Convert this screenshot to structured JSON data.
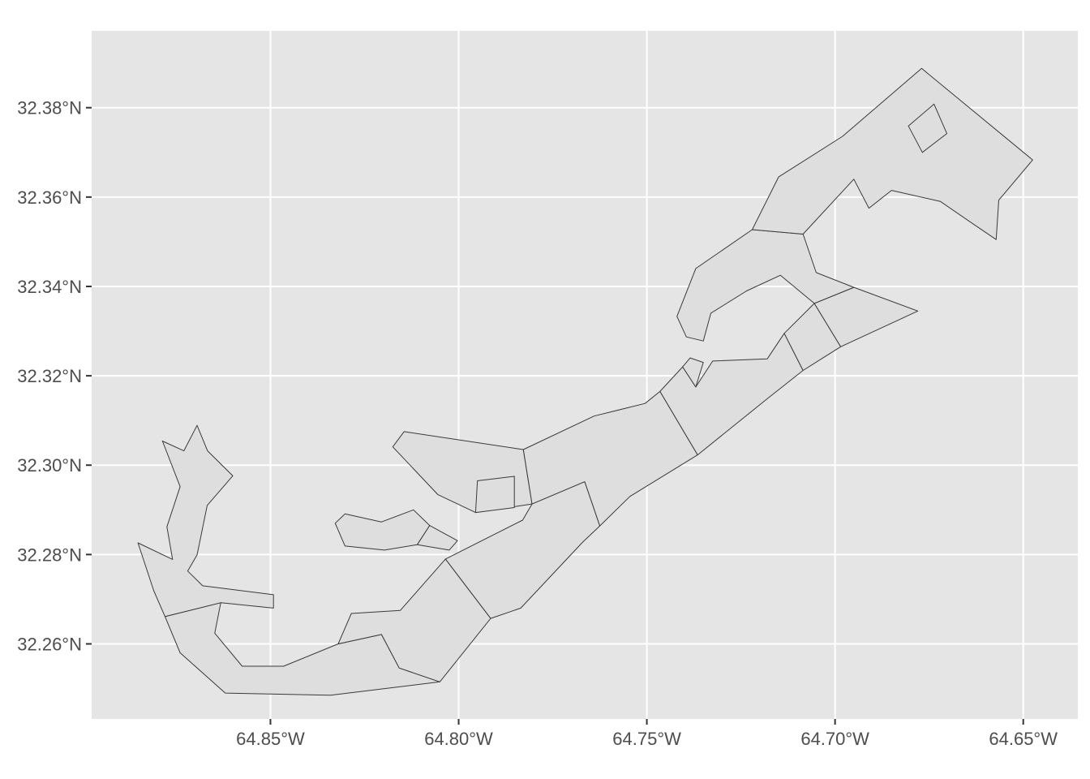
{
  "chart_data": {
    "type": "map",
    "title": "",
    "xlabel": "",
    "ylabel": "",
    "grid": true,
    "xlim": [
      -64.8975,
      -64.6355
    ],
    "ylim": [
      32.2432,
      32.3972
    ],
    "x_ticks": [
      {
        "value": -64.85,
        "label": "64.85°W"
      },
      {
        "value": -64.8,
        "label": "64.80°W"
      },
      {
        "value": -64.75,
        "label": "64.75°W"
      },
      {
        "value": -64.7,
        "label": "64.70°W"
      },
      {
        "value": -64.65,
        "label": "64.65°W"
      }
    ],
    "y_ticks": [
      {
        "value": 32.26,
        "label": "32.26°N"
      },
      {
        "value": 32.28,
        "label": "32.28°N"
      },
      {
        "value": 32.3,
        "label": "32.30°N"
      },
      {
        "value": 32.32,
        "label": "32.32°N"
      },
      {
        "value": 32.34,
        "label": "32.34°N"
      },
      {
        "value": 32.36,
        "label": "32.36°N"
      },
      {
        "value": 32.38,
        "label": "32.38°N"
      }
    ],
    "regions": [
      [
        [
          -64.8787,
          32.3054
        ],
        [
          -64.873,
          32.3032
        ],
        [
          -64.8695,
          32.3089
        ],
        [
          -64.8667,
          32.3032
        ],
        [
          -64.86,
          32.2976
        ],
        [
          -64.8668,
          32.291
        ],
        [
          -64.8695,
          32.2799
        ],
        [
          -64.872,
          32.2763
        ],
        [
          -64.868,
          32.273
        ],
        [
          -64.8492,
          32.271
        ],
        [
          -64.8492,
          32.268
        ],
        [
          -64.8632,
          32.2692
        ],
        [
          -64.878,
          32.2661
        ],
        [
          -64.881,
          32.2719
        ],
        [
          -64.8852,
          32.2826
        ],
        [
          -64.876,
          32.2789
        ],
        [
          -64.8775,
          32.2862
        ],
        [
          -64.874,
          32.2952
        ]
      ],
      [
        [
          -64.878,
          32.2661
        ],
        [
          -64.8632,
          32.2692
        ],
        [
          -64.8648,
          32.2624
        ],
        [
          -64.8575,
          32.255
        ],
        [
          -64.8465,
          32.255
        ],
        [
          -64.832,
          32.26
        ],
        [
          -64.8205,
          32.2621
        ],
        [
          -64.8158,
          32.2546
        ],
        [
          -64.805,
          32.2515
        ],
        [
          -64.834,
          32.2485
        ],
        [
          -64.862,
          32.249
        ],
        [
          -64.874,
          32.258
        ]
      ],
      [
        [
          -64.832,
          32.26
        ],
        [
          -64.8285,
          32.2668
        ],
        [
          -64.8155,
          32.2675
        ],
        [
          -64.8035,
          32.279
        ],
        [
          -64.7915,
          32.2657
        ],
        [
          -64.805,
          32.2515
        ],
        [
          -64.8158,
          32.2546
        ],
        [
          -64.8205,
          32.2621
        ]
      ],
      [
        [
          -64.8035,
          32.279
        ],
        [
          -64.783,
          32.2877
        ],
        [
          -64.7805,
          32.2913
        ],
        [
          -64.7665,
          32.2963
        ],
        [
          -64.7625,
          32.2864
        ],
        [
          -64.767,
          32.2828
        ],
        [
          -64.7835,
          32.268
        ],
        [
          -64.7915,
          32.2657
        ]
      ],
      [
        [
          -64.8328,
          32.287
        ],
        [
          -64.8302,
          32.2891
        ],
        [
          -64.8205,
          32.2873
        ],
        [
          -64.812,
          32.29
        ],
        [
          -64.8077,
          32.2865
        ],
        [
          -64.811,
          32.2822
        ],
        [
          -64.8197,
          32.281
        ],
        [
          -64.8302,
          32.2819
        ]
      ],
      [
        [
          -64.8077,
          32.2865
        ],
        [
          -64.8003,
          32.2831
        ],
        [
          -64.8025,
          32.281
        ],
        [
          -64.811,
          32.2822
        ]
      ],
      [
        [
          -64.8145,
          32.3075
        ],
        [
          -64.7828,
          32.3035
        ],
        [
          -64.7805,
          32.2913
        ],
        [
          -64.7955,
          32.2894
        ],
        [
          -64.8055,
          32.2934
        ],
        [
          -64.8175,
          32.3041
        ]
      ],
      [
        [
          -64.7955,
          32.2894
        ],
        [
          -64.7852,
          32.2905
        ],
        [
          -64.7852,
          32.2975
        ],
        [
          -64.795,
          32.2965
        ]
      ],
      [
        [
          -64.7828,
          32.3035
        ],
        [
          -64.764,
          32.311
        ],
        [
          -64.7505,
          32.3138
        ],
        [
          -64.7465,
          32.3165
        ],
        [
          -64.7365,
          32.3023
        ],
        [
          -64.7545,
          32.293
        ],
        [
          -64.7625,
          32.2864
        ],
        [
          -64.7665,
          32.2963
        ],
        [
          -64.7805,
          32.2913
        ]
      ],
      [
        [
          -64.7465,
          32.3165
        ],
        [
          -64.7405,
          32.322
        ],
        [
          -64.737,
          32.3175
        ],
        [
          -64.7325,
          32.3233
        ],
        [
          -64.718,
          32.3238
        ],
        [
          -64.7135,
          32.3295
        ],
        [
          -64.7085,
          32.3212
        ],
        [
          -64.7175,
          32.3152
        ],
        [
          -64.7365,
          32.3023
        ]
      ],
      [
        [
          -64.7405,
          32.322
        ],
        [
          -64.7385,
          32.324
        ],
        [
          -64.735,
          32.323
        ],
        [
          -64.737,
          32.3175
        ]
      ],
      [
        [
          -64.7135,
          32.3295
        ],
        [
          -64.7055,
          32.3362
        ],
        [
          -64.6985,
          32.3265
        ],
        [
          -64.7085,
          32.3212
        ]
      ],
      [
        [
          -64.7055,
          32.3362
        ],
        [
          -64.695,
          32.3398
        ],
        [
          -64.678,
          32.3345
        ],
        [
          -64.6985,
          32.3265
        ]
      ],
      [
        [
          -64.722,
          32.3527
        ],
        [
          -64.7085,
          32.3517
        ],
        [
          -64.705,
          32.3431
        ],
        [
          -64.695,
          32.3398
        ],
        [
          -64.7055,
          32.3362
        ],
        [
          -64.7145,
          32.3425
        ],
        [
          -64.7235,
          32.339
        ],
        [
          -64.733,
          32.334
        ],
        [
          -64.735,
          32.3278
        ],
        [
          -64.7395,
          32.3287
        ],
        [
          -64.742,
          32.3333
        ],
        [
          -64.737,
          32.344
        ]
      ],
      [
        [
          -64.722,
          32.3527
        ],
        [
          -64.715,
          32.3645
        ],
        [
          -64.698,
          32.3736
        ],
        [
          -64.677,
          32.3888
        ],
        [
          -64.6475,
          32.3683
        ],
        [
          -64.6565,
          32.3593
        ],
        [
          -64.6572,
          32.3505
        ],
        [
          -64.6625,
          32.3535
        ],
        [
          -64.672,
          32.359
        ],
        [
          -64.685,
          32.3615
        ],
        [
          -64.691,
          32.3575
        ],
        [
          -64.695,
          32.364
        ],
        [
          -64.7085,
          32.3517
        ]
      ],
      [
        [
          -64.6805,
          32.3759
        ],
        [
          -64.6737,
          32.3808
        ],
        [
          -64.6703,
          32.3742
        ],
        [
          -64.6768,
          32.37
        ]
      ]
    ]
  }
}
